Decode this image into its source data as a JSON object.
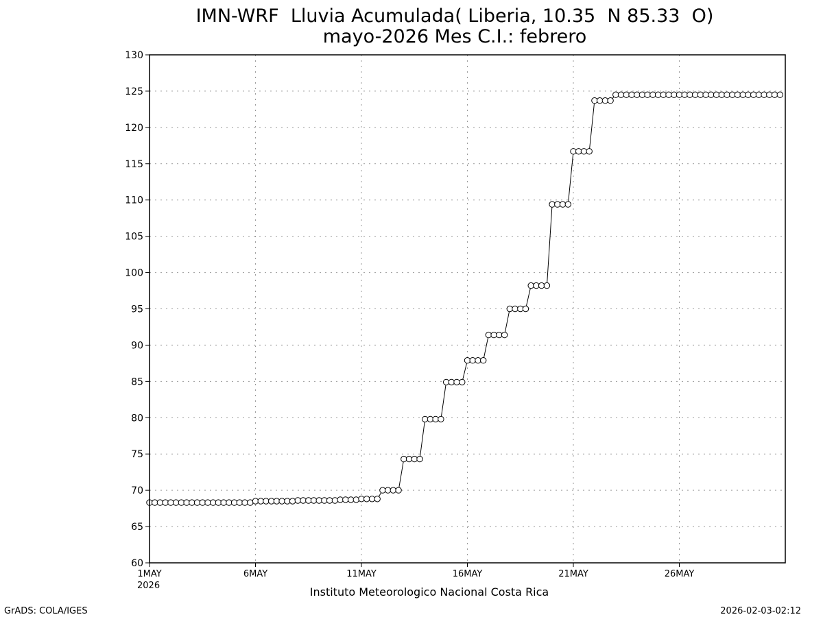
{
  "chart_data": {
    "type": "line",
    "title": "IMN-WRF  Lluvia Acumulada( Liberia, 10.35  N 85.33  O)",
    "subtitle": "mayo-2026 Mes C.I.: febrero",
    "xlabel": "",
    "ylabel": "",
    "ylim": [
      60,
      130
    ],
    "yticks": [
      "60",
      "65",
      "70",
      "75",
      "80",
      "85",
      "90",
      "95",
      "100",
      "105",
      "110",
      "115",
      "120",
      "125",
      "130"
    ],
    "xticks": [
      "1MAY",
      "6MAY",
      "11MAY",
      "16MAY",
      "21MAY",
      "26MAY"
    ],
    "x_year_label": "2026",
    "grid": true,
    "marker": "open-circle",
    "series": [
      {
        "x_start": "2026-05-01 00:00",
        "x_step_hours": 6,
        "values": [
          68.3,
          68.3,
          68.3,
          68.3,
          68.3,
          68.3,
          68.3,
          68.3,
          68.3,
          68.3,
          68.3,
          68.3,
          68.3,
          68.3,
          68.3,
          68.3,
          68.3,
          68.3,
          68.3,
          68.3,
          68.5,
          68.5,
          68.5,
          68.5,
          68.5,
          68.5,
          68.5,
          68.5,
          68.6,
          68.6,
          68.6,
          68.6,
          68.6,
          68.6,
          68.6,
          68.6,
          68.7,
          68.7,
          68.7,
          68.7,
          68.8,
          68.8,
          68.8,
          68.8,
          70.0,
          70.0,
          70.0,
          70.0,
          74.3,
          74.3,
          74.3,
          74.3,
          79.8,
          79.8,
          79.8,
          79.8,
          84.9,
          84.9,
          84.9,
          84.9,
          87.9,
          87.9,
          87.9,
          87.9,
          91.4,
          91.4,
          91.4,
          91.4,
          95.0,
          95.0,
          95.0,
          95.0,
          98.2,
          98.2,
          98.2,
          98.2,
          109.4,
          109.4,
          109.4,
          109.4,
          116.7,
          116.7,
          116.7,
          116.7,
          123.7,
          123.7,
          123.7,
          123.7,
          124.5,
          124.5,
          124.5,
          124.5,
          124.5,
          124.5,
          124.5,
          124.5,
          124.5,
          124.5,
          124.5,
          124.5,
          124.5,
          124.5,
          124.5,
          124.5,
          124.5,
          124.5,
          124.5,
          124.5,
          124.5,
          124.5,
          124.5,
          124.5,
          124.5,
          124.5,
          124.5,
          124.5,
          124.5,
          124.5,
          124.5,
          124.5
        ]
      }
    ]
  },
  "footer": {
    "institution": "Instituto Meteorologico Nacional Costa Rica",
    "software": "GrADS: COLA/IGES",
    "timestamp": "2026-02-03-02:12"
  },
  "colors": {
    "line": "#000000",
    "marker_fill": "#ffffff",
    "grid": "#999999",
    "background": "#ffffff"
  }
}
